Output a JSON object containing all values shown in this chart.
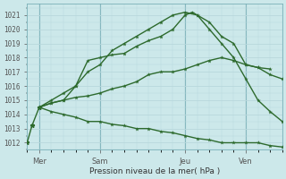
{
  "bg_color": "#cce8ea",
  "plot_bg_color": "#cce8ea",
  "grid_color": "#aad0d4",
  "line_color": "#2d6a2d",
  "title": "Pression niveau de la mer( hPa )",
  "ylim": [
    1011.5,
    1021.8
  ],
  "yticks": [
    1012,
    1013,
    1014,
    1015,
    1016,
    1017,
    1018,
    1019,
    1020,
    1021
  ],
  "xlim": [
    0,
    10.5
  ],
  "day_labels": [
    "Mer",
    "Sam",
    "Jeu",
    "Ven"
  ],
  "day_positions": [
    0.5,
    3.0,
    6.5,
    9.0
  ],
  "vline_positions": [
    0.5,
    3.0,
    6.5,
    9.0
  ],
  "lines": [
    {
      "x": [
        0.5,
        1.0,
        1.5,
        2.0,
        2.5,
        3.0,
        3.5,
        4.0,
        4.5,
        5.0,
        5.5,
        6.0,
        6.5,
        7.0,
        7.5,
        8.0,
        8.5,
        9.0,
        9.5,
        10.0
      ],
      "y": [
        1014.5,
        1015.0,
        1015.5,
        1016.0,
        1017.0,
        1017.5,
        1018.5,
        1019.0,
        1019.5,
        1020.0,
        1020.5,
        1021.0,
        1021.2,
        1021.0,
        1020.5,
        1019.5,
        1019.0,
        1017.5,
        1017.3,
        1017.2
      ]
    },
    {
      "x": [
        0.5,
        1.0,
        1.5,
        2.0,
        2.5,
        3.0,
        3.5,
        4.0,
        4.5,
        5.0,
        5.5,
        6.0,
        6.5,
        6.8,
        7.0,
        7.5,
        8.0,
        8.5,
        9.0,
        9.5,
        10.0,
        10.5
      ],
      "y": [
        1014.5,
        1014.8,
        1015.0,
        1016.0,
        1017.8,
        1018.0,
        1018.2,
        1018.3,
        1018.8,
        1019.2,
        1019.5,
        1020.0,
        1021.0,
        1021.2,
        1021.0,
        1020.0,
        1019.0,
        1018.0,
        1016.5,
        1015.0,
        1014.2,
        1013.5
      ]
    },
    {
      "x": [
        0.5,
        1.0,
        1.5,
        2.0,
        2.5,
        3.0,
        3.5,
        4.0,
        4.5,
        5.0,
        5.5,
        6.0,
        6.5,
        7.0,
        7.5,
        8.0,
        8.5,
        9.0,
        9.5,
        10.0,
        10.5
      ],
      "y": [
        1014.5,
        1014.8,
        1015.0,
        1015.2,
        1015.3,
        1015.5,
        1015.8,
        1016.0,
        1016.3,
        1016.8,
        1017.0,
        1017.0,
        1017.2,
        1017.5,
        1017.8,
        1018.0,
        1017.8,
        1017.5,
        1017.3,
        1016.8,
        1016.5
      ]
    },
    {
      "x": [
        0.5,
        1.0,
        1.5,
        2.0,
        2.5,
        3.0,
        3.5,
        4.0,
        4.5,
        5.0,
        5.5,
        6.0,
        6.5,
        7.0,
        7.5,
        8.0,
        8.5,
        9.0,
        9.5,
        10.0,
        10.5
      ],
      "y": [
        1014.5,
        1014.2,
        1014.0,
        1013.8,
        1013.5,
        1013.5,
        1013.3,
        1013.2,
        1013.0,
        1013.0,
        1012.8,
        1012.7,
        1012.5,
        1012.3,
        1012.2,
        1012.0,
        1012.0,
        1012.0,
        1012.0,
        1011.8,
        1011.7
      ]
    }
  ],
  "early_line": {
    "x": [
      0.0,
      0.2,
      0.5
    ],
    "y": [
      1012.0,
      1013.2,
      1014.5
    ]
  }
}
